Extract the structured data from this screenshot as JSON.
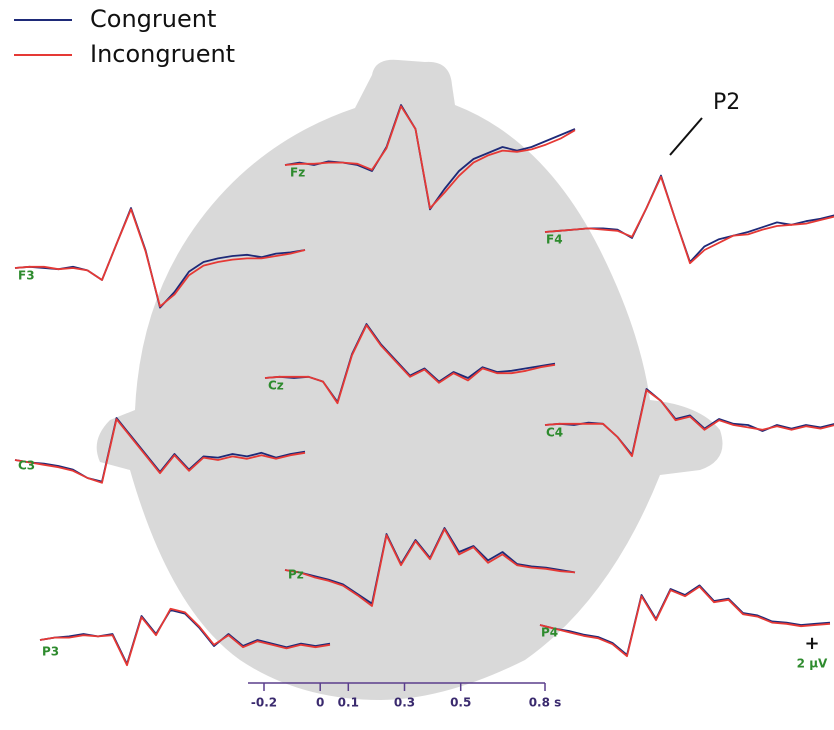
{
  "chart_data": {
    "type": "line",
    "series": [
      {
        "name": "Congruent",
        "color": "#1e2a78"
      },
      {
        "name": "Incongruent",
        "color": "#e53935"
      }
    ],
    "x": [
      -0.2,
      -0.15,
      -0.1,
      -0.05,
      0,
      0.05,
      0.1,
      0.15,
      0.2,
      0.25,
      0.3,
      0.35,
      0.4,
      0.45,
      0.5,
      0.55,
      0.6,
      0.65,
      0.7,
      0.75,
      0.8
    ],
    "xlim": [
      -0.2,
      0.8
    ],
    "xticks": [
      -0.2,
      0,
      0.1,
      0.3,
      0.5,
      {
        "value": 0.8,
        "label": "0.8 s"
      }
    ],
    "annotation": "P2",
    "scale_bar": {
      "sign": "+",
      "label": "2 µV"
    },
    "panels": [
      {
        "label": "Fz",
        "traces": [
          [
            0,
            0.2,
            0,
            0.3,
            0.2,
            0,
            -0.5,
            1.5,
            5,
            3,
            -3.7,
            -2,
            -0.5,
            0.5,
            1,
            1.5,
            1.2,
            1.5,
            2,
            2.5,
            3
          ],
          [
            0,
            0.1,
            0.1,
            0.2,
            0.2,
            0.1,
            -0.4,
            1.4,
            4.9,
            3,
            -3.6,
            -2.3,
            -0.9,
            0.2,
            0.8,
            1.2,
            1.1,
            1.3,
            1.7,
            2.2,
            2.9
          ]
        ]
      },
      {
        "label": "F4",
        "traces": [
          [
            0,
            0.1,
            0.2,
            0.3,
            0.3,
            0.2,
            -0.5,
            2,
            4.7,
            1,
            -2.5,
            -1.2,
            -0.6,
            -0.3,
            0,
            0.4,
            0.8,
            0.6,
            0.9,
            1.1,
            1.4
          ],
          [
            0,
            0.1,
            0.2,
            0.3,
            0.2,
            0.1,
            -0.4,
            2,
            4.6,
            1,
            -2.6,
            -1.5,
            -0.9,
            -0.3,
            -0.2,
            0.2,
            0.5,
            0.6,
            0.7,
            1,
            1.3
          ]
        ]
      },
      {
        "label": "F3",
        "traces": [
          [
            0,
            0.1,
            0,
            -0.1,
            0.1,
            -0.2,
            -1,
            2,
            5,
            1.5,
            -3.3,
            -2,
            -0.3,
            0.5,
            0.8,
            1,
            1.1,
            0.9,
            1.2,
            1.3,
            1.5
          ],
          [
            0,
            0.1,
            0.1,
            -0.1,
            0,
            -0.2,
            -1,
            2,
            4.9,
            1.4,
            -3.2,
            -2.2,
            -0.6,
            0.2,
            0.5,
            0.7,
            0.8,
            0.8,
            1,
            1.2,
            1.5
          ]
        ]
      },
      {
        "label": "Cz",
        "traces": [
          [
            0,
            0.1,
            0,
            0.1,
            -0.3,
            -2,
            2,
            4.5,
            2.8,
            1.5,
            0.2,
            0.8,
            -0.3,
            0.5,
            0,
            0.9,
            0.5,
            0.6,
            0.8,
            1,
            1.2
          ],
          [
            0,
            0.1,
            0.1,
            0.1,
            -0.3,
            -2.1,
            1.9,
            4.4,
            2.7,
            1.4,
            0.1,
            0.7,
            -0.4,
            0.4,
            -0.2,
            0.8,
            0.4,
            0.4,
            0.6,
            0.9,
            1.1
          ]
        ]
      },
      {
        "label": "C4",
        "traces": [
          [
            0,
            0.1,
            0,
            0.2,
            0.1,
            -1,
            -2.5,
            3,
            2,
            0.5,
            0.8,
            -0.3,
            0.5,
            0.1,
            0,
            -0.5,
            0,
            -0.3,
            0,
            -0.2,
            0.1
          ],
          [
            0,
            0.1,
            0.1,
            0.1,
            0.1,
            -1,
            -2.6,
            2.9,
            2,
            0.4,
            0.7,
            -0.4,
            0.4,
            0,
            -0.2,
            -0.4,
            -0.1,
            -0.4,
            -0.1,
            -0.3,
            0
          ]
        ]
      },
      {
        "label": "C3",
        "traces": [
          [
            0,
            -0.2,
            -0.3,
            -0.5,
            -0.8,
            -1.5,
            -1.8,
            3.5,
            2,
            0.5,
            -1,
            0.5,
            -0.8,
            0.3,
            0.2,
            0.5,
            0.3,
            0.6,
            0.2,
            0.5,
            0.7
          ],
          [
            0,
            -0.2,
            -0.4,
            -0.6,
            -0.9,
            -1.5,
            -1.9,
            3.4,
            1.9,
            0.4,
            -1.1,
            0.4,
            -0.9,
            0.2,
            0,
            0.3,
            0.1,
            0.4,
            0.1,
            0.4,
            0.6
          ]
        ]
      },
      {
        "label": "Pz",
        "traces": [
          [
            0,
            -0.2,
            -0.5,
            -0.8,
            -1.2,
            -2,
            -2.8,
            3,
            0.5,
            2.5,
            1,
            3.5,
            1.5,
            2,
            0.8,
            1.5,
            0.5,
            0.3,
            0.2,
            0,
            -0.2
          ],
          [
            0,
            -0.2,
            -0.6,
            -0.9,
            -1.3,
            -2.1,
            -3,
            2.9,
            0.4,
            2.4,
            0.9,
            3.4,
            1.3,
            1.9,
            0.6,
            1.3,
            0.4,
            0.2,
            0.1,
            -0.1,
            -0.2
          ]
        ]
      },
      {
        "label": "P3",
        "traces": [
          [
            0,
            0.2,
            0.3,
            0.5,
            0.3,
            0.5,
            -2,
            2,
            0.5,
            2.5,
            2.2,
            1,
            -0.5,
            0.5,
            -0.5,
            0,
            -0.3,
            -0.6,
            -0.3,
            -0.5,
            -0.3
          ],
          [
            0,
            0.2,
            0.2,
            0.4,
            0.3,
            0.4,
            -2.1,
            1.9,
            0.4,
            2.6,
            2.3,
            1.1,
            -0.4,
            0.4,
            -0.6,
            -0.1,
            -0.4,
            -0.7,
            -0.4,
            -0.6,
            -0.4
          ]
        ]
      },
      {
        "label": "P4",
        "traces": [
          [
            0,
            -0.3,
            -0.5,
            -0.8,
            -1,
            -1.5,
            -2.5,
            2.5,
            0.5,
            3,
            2.5,
            3.3,
            2,
            2.2,
            1,
            0.8,
            0.3,
            0.2,
            0,
            0.1,
            0.2
          ],
          [
            0,
            -0.3,
            -0.6,
            -0.9,
            -1.1,
            -1.6,
            -2.6,
            2.4,
            0.4,
            2.9,
            2.4,
            3.2,
            1.9,
            2.1,
            0.9,
            0.7,
            0.2,
            0.1,
            -0.1,
            0,
            0.1
          ]
        ]
      }
    ]
  }
}
